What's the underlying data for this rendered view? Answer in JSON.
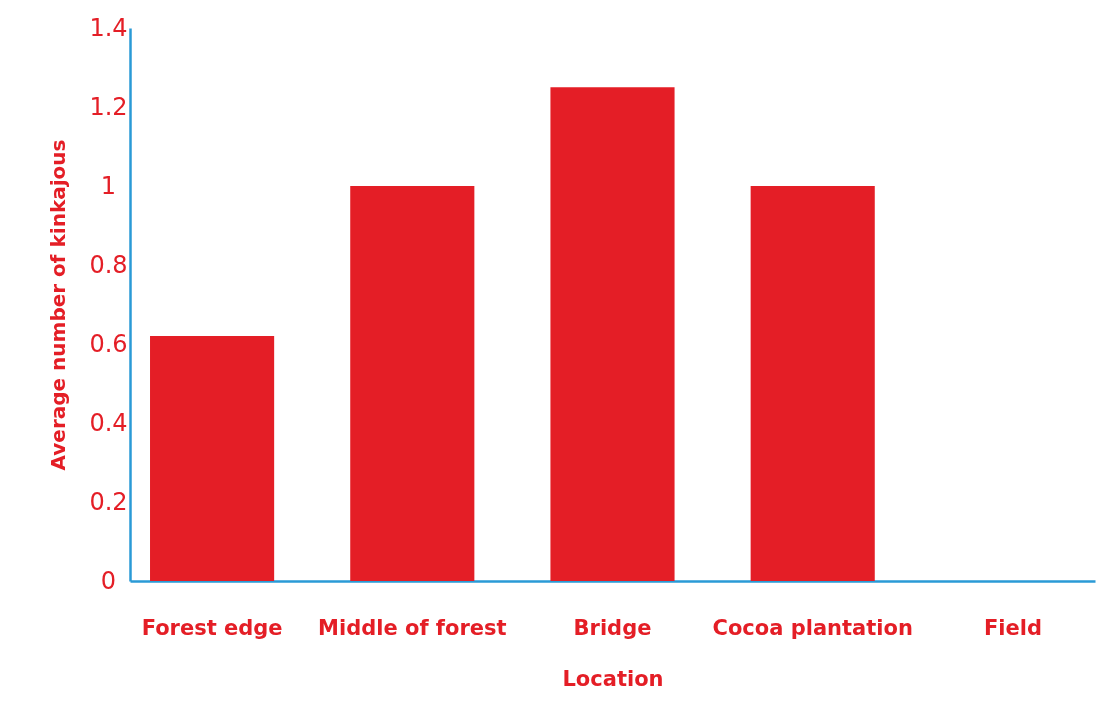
{
  "chart_data": {
    "type": "bar",
    "xlabel": "Location",
    "ylabel": "Average number of kinkajous",
    "categories": [
      "Forest edge",
      "Middle of forest",
      "Bridge",
      "Cocoa plantation",
      "Field"
    ],
    "values": [
      0.62,
      1,
      1.25,
      1,
      0
    ],
    "color": "#e41e26",
    "ylim": [
      0,
      1.4
    ],
    "yticks": [
      0,
      0.2,
      0.4,
      0.6,
      0.8,
      1,
      1.2,
      1.4
    ],
    "grid": false
  }
}
